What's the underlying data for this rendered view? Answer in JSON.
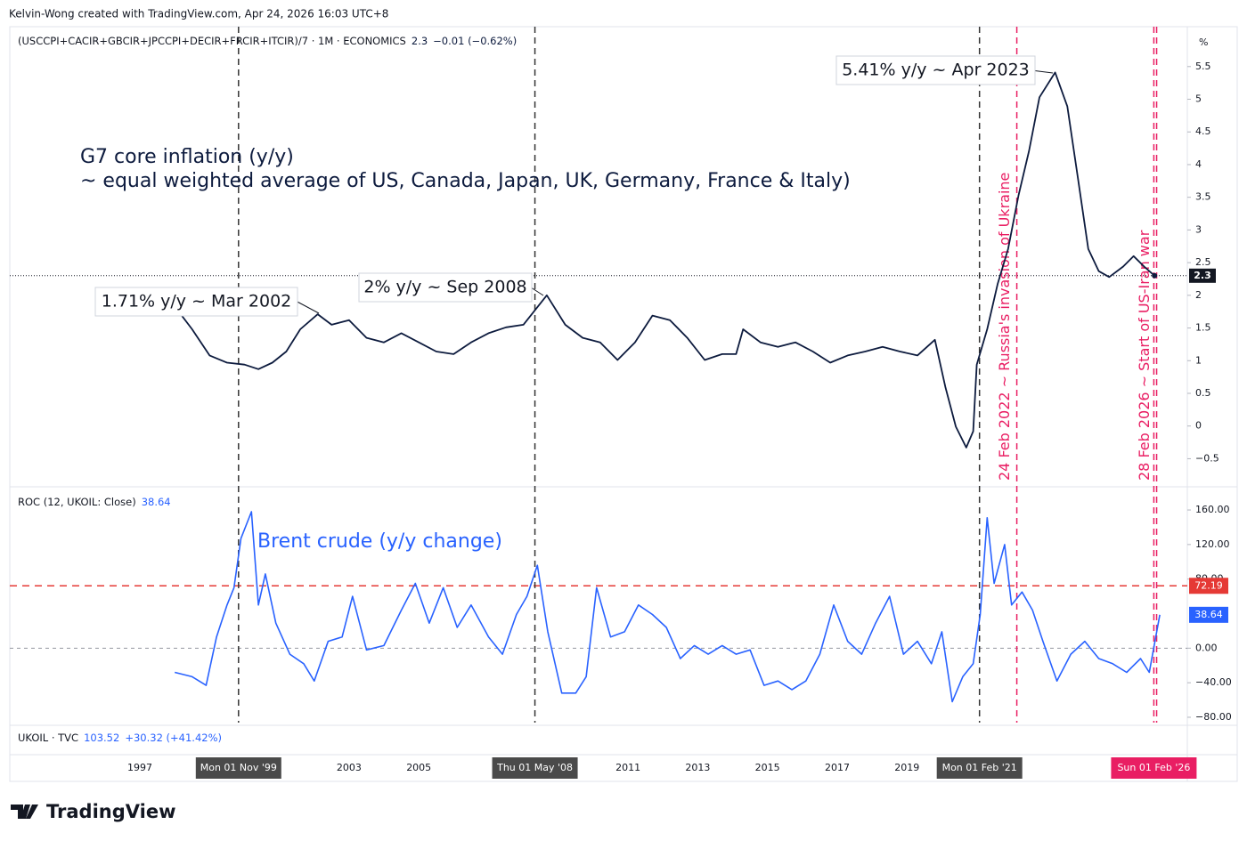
{
  "watermark": "Kelvin-Wong created with TradingView.com, Apr 24, 2026 16:03 UTC+8",
  "brand": "TradingView",
  "markers": [
    {
      "x": 1999.83,
      "label": "Mon 01 Nov '99",
      "color": "#333333"
    },
    {
      "x": 2008.33,
      "label": "Thu 01 May '08",
      "color": "#333333"
    },
    {
      "x": 2021.08,
      "label": "Mon 01 Feb '21",
      "color": "#333333"
    },
    {
      "x": 2026.08,
      "label": "Sun 01 Feb '26",
      "color": "#e91e63"
    }
  ],
  "events": [
    {
      "x": 2022.15,
      "label": "24 Feb 2022 ~ Russia's invasion of Ukraine",
      "color": "#e91e63"
    },
    {
      "x": 2026.16,
      "label": "28 Feb 2026 ~ Start of US-Iran war",
      "color": "#e91e63"
    }
  ],
  "chart_data": [
    {
      "type": "line",
      "header": "(USCCPI+CACIR+GBCIR+JPCCPI+DECIR+FRCIR+ITCIR)/7 · 1M · ECONOMICS",
      "last_value": 2.3,
      "change": "−0.01 (−0.62%)",
      "title": "G7 core inflation (y/y)",
      "subtitle": "~ equal weighted average of US, Canada, Japan, UK, Germany, France & Italy)",
      "unit": "%",
      "annotations": [
        "1.71% y/y ~ Mar 2002",
        "2% y/y ~ Sep 2008",
        "5.41% y/y ~ Apr 2023"
      ],
      "color": "#0d1b3e",
      "xlim": [
        1993.27,
        2027.04
      ],
      "xticks": [
        1997,
        2003,
        2005,
        2011,
        2013,
        2015,
        2017,
        2019
      ],
      "ylim": [
        -0.93,
        6.11
      ],
      "yticks": [
        {
          "value": -0.5,
          "label": "−0.5"
        },
        0,
        0.5,
        1,
        1.5,
        2,
        2.5,
        3,
        3.5,
        4,
        4.5,
        5,
        5.5
      ],
      "x": [
        1997.1,
        1997.5,
        1998.0,
        1998.5,
        1999.0,
        1999.5,
        2000.0,
        2000.4,
        2000.8,
        2001.2,
        2001.6,
        2002.1,
        2002.5,
        2003.0,
        2003.5,
        2004.0,
        2004.5,
        2005.0,
        2005.5,
        2006.0,
        2006.5,
        2007.0,
        2007.5,
        2008.0,
        2008.67,
        2009.2,
        2009.7,
        2010.2,
        2010.7,
        2011.2,
        2011.7,
        2012.2,
        2012.7,
        2013.2,
        2013.7,
        2014.1,
        2014.3,
        2014.8,
        2015.3,
        2015.8,
        2016.3,
        2016.8,
        2017.3,
        2017.8,
        2018.3,
        2018.8,
        2019.3,
        2019.8,
        2020.1,
        2020.4,
        2020.7,
        2020.9,
        2021.0,
        2021.3,
        2021.6,
        2021.9,
        2022.2,
        2022.5,
        2022.8,
        2023.25,
        2023.6,
        2023.9,
        2024.2,
        2024.5,
        2024.8,
        2025.2,
        2025.5,
        2025.8,
        2026.1
      ],
      "values": [
        1.69,
        1.83,
        1.83,
        1.48,
        1.08,
        0.97,
        0.94,
        0.87,
        0.97,
        1.14,
        1.48,
        1.71,
        1.55,
        1.62,
        1.35,
        1.28,
        1.42,
        1.28,
        1.14,
        1.1,
        1.28,
        1.42,
        1.51,
        1.55,
        2.0,
        1.55,
        1.35,
        1.28,
        1.01,
        1.28,
        1.69,
        1.62,
        1.35,
        1.01,
        1.1,
        1.1,
        1.48,
        1.28,
        1.21,
        1.28,
        1.14,
        0.97,
        1.08,
        1.14,
        1.21,
        1.14,
        1.08,
        1.32,
        0.6,
        -0.01,
        -0.33,
        -0.08,
        0.94,
        1.48,
        2.17,
        2.71,
        3.53,
        4.21,
        5.03,
        5.41,
        4.89,
        3.8,
        2.71,
        2.37,
        2.28,
        2.44,
        2.6,
        2.44,
        2.3
      ]
    },
    {
      "type": "line",
      "header": "ROC (12, UKOIL: Close)",
      "last_value": 38.64,
      "last_label": "38.64",
      "title": "Brent crude (y/y change)",
      "level": {
        "value": 72.19,
        "label": "72.19",
        "color": "#e53935"
      },
      "sub_header": "UKOIL · TVC",
      "sub_price": 103.52,
      "sub_change": "+30.32 (+41.42%)",
      "color": "#2962ff",
      "xlim": [
        1993.27,
        2027.04
      ],
      "ylim": [
        -89.3,
        185.8
      ],
      "yticks": [
        {
          "value": -80,
          "label": "−80.00"
        },
        {
          "value": -40,
          "label": "−40.00"
        },
        {
          "value": 0,
          "label": "0.00"
        },
        {
          "value": 80,
          "label": "80.00"
        },
        {
          "value": 120,
          "label": "120.00"
        },
        {
          "value": 160,
          "label": "160.00"
        }
      ],
      "x": [
        1998.0,
        1998.5,
        1998.9,
        1999.2,
        1999.5,
        1999.7,
        1999.9,
        2000.2,
        2000.4,
        2000.6,
        2000.9,
        2001.3,
        2001.7,
        2002.0,
        2002.4,
        2002.8,
        2003.1,
        2003.5,
        2004.0,
        2004.5,
        2004.9,
        2005.3,
        2005.7,
        2006.1,
        2006.5,
        2007.0,
        2007.4,
        2007.8,
        2008.1,
        2008.4,
        2008.7,
        2009.1,
        2009.5,
        2009.8,
        2010.1,
        2010.5,
        2010.9,
        2011.3,
        2011.7,
        2012.1,
        2012.5,
        2012.9,
        2013.3,
        2013.7,
        2014.1,
        2014.5,
        2014.9,
        2015.3,
        2015.7,
        2016.1,
        2016.5,
        2016.9,
        2017.3,
        2017.7,
        2018.1,
        2018.5,
        2018.9,
        2019.3,
        2019.7,
        2020.0,
        2020.3,
        2020.6,
        2020.9,
        2021.1,
        2021.3,
        2021.5,
        2021.8,
        2022.0,
        2022.3,
        2022.6,
        2022.9,
        2023.3,
        2023.7,
        2024.1,
        2024.5,
        2024.9,
        2025.3,
        2025.7,
        2025.95,
        2026.25
      ],
      "values": [
        -28,
        -33,
        -43,
        13,
        50,
        70,
        127,
        158,
        50,
        86,
        29,
        -7,
        -18,
        -38,
        8,
        13,
        60,
        -2,
        3,
        44,
        75,
        29,
        70,
        24,
        50,
        13,
        -7,
        39,
        60,
        96,
        19,
        -52,
        -52,
        -33,
        70,
        13,
        19,
        50,
        39,
        24,
        -12,
        3,
        -7,
        3,
        -7,
        -2,
        -43,
        -38,
        -48,
        -38,
        -7,
        50,
        8,
        -7,
        29,
        60,
        -7,
        8,
        -18,
        19,
        -62,
        -33,
        -18,
        39,
        151,
        75,
        120,
        50,
        65,
        44,
        8,
        -38,
        -7,
        8,
        -12,
        -18,
        -28,
        -12,
        -28,
        38.64
      ]
    }
  ]
}
